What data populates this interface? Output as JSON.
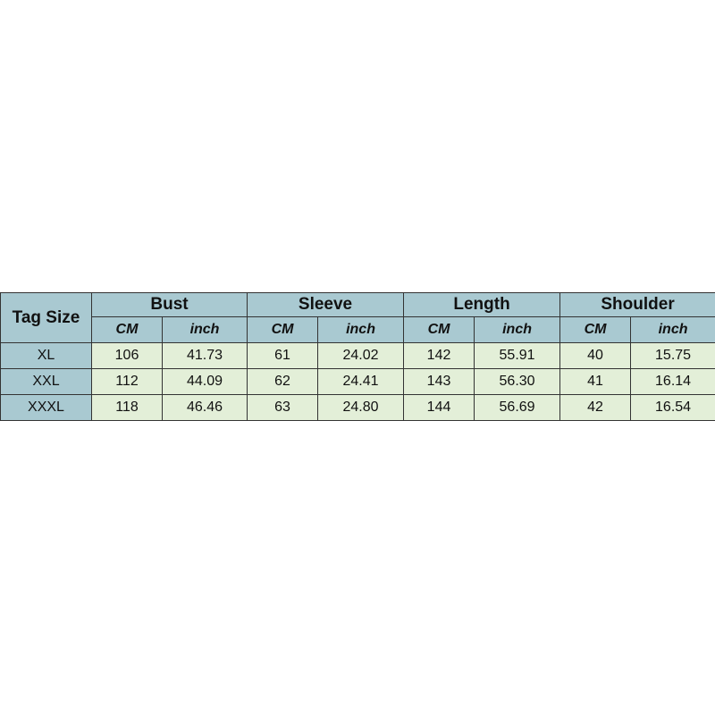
{
  "table": {
    "corner_label": "Tag Size",
    "groups": [
      "Bust",
      "Sleeve",
      "Length",
      "Shoulder"
    ],
    "units": [
      "CM",
      "inch"
    ],
    "rows": [
      {
        "size": "XL",
        "values": [
          "106",
          "41.73",
          "61",
          "24.02",
          "142",
          "55.91",
          "40",
          "15.75"
        ]
      },
      {
        "size": "XXL",
        "values": [
          "112",
          "44.09",
          "62",
          "24.41",
          "143",
          "56.30",
          "41",
          "16.14"
        ]
      },
      {
        "size": "XXXL",
        "values": [
          "118",
          "46.46",
          "63",
          "24.80",
          "144",
          "56.69",
          "42",
          "16.54"
        ]
      }
    ]
  },
  "colors": {
    "header_bg": "#a9c9d1",
    "cell_bg": "#e3efd8",
    "border": "#333333"
  }
}
